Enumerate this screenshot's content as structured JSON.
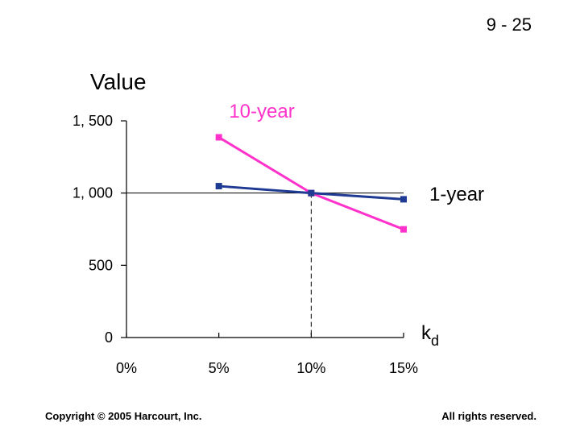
{
  "header": {
    "slide_number": "9 - 25"
  },
  "footer": {
    "copyright": "Copyright © 2005 Harcourt, Inc.",
    "rights": "All rights reserved."
  },
  "chart_data": {
    "type": "line",
    "ylabel": "Value",
    "xlabel_main": "k",
    "xlabel_sub": "d",
    "x": [
      5,
      10,
      15
    ],
    "x_ticks": [
      0,
      5,
      10,
      15
    ],
    "x_tick_labels": [
      "0%",
      "5%",
      "10%",
      "15%"
    ],
    "y_ticks": [
      0,
      500,
      1000,
      1500
    ],
    "y_tick_labels": [
      "0",
      "500",
      "1, 000",
      "1, 500"
    ],
    "xlim": [
      0,
      15
    ],
    "ylim": [
      0,
      1500
    ],
    "grid": false,
    "reference_line_y": 1000,
    "reference_line_x": 10,
    "series": [
      {
        "name": "10-year",
        "values": [
          1386,
          1000,
          749
        ],
        "color": "#ff33cc"
      },
      {
        "name": "1-year",
        "values": [
          1048,
          1000,
          957
        ],
        "color": "#1f3a93"
      }
    ]
  }
}
